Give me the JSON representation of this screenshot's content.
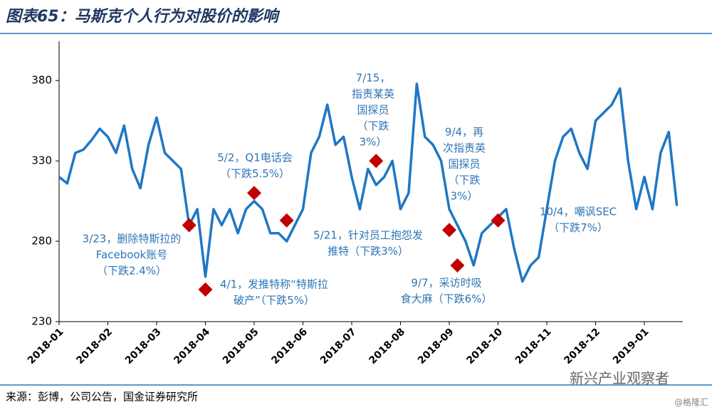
{
  "chart_data": {
    "type": "line",
    "title": "图表65：马斯克个人行为对股价的影响",
    "source": "来源：彭博，公司公告，国金证券研究所",
    "watermark": "新兴产业观察者",
    "credit": "@格隆汇",
    "categories": [
      "2018-01",
      null,
      null,
      null,
      null,
      null,
      "2018-02",
      null,
      null,
      null,
      null,
      null,
      "2018-03",
      null,
      null,
      null,
      null,
      null,
      "2018-04",
      null,
      null,
      null,
      null,
      null,
      "2018-05",
      null,
      null,
      null,
      null,
      null,
      "2018-06",
      null,
      null,
      null,
      null,
      null,
      "2018-07",
      null,
      null,
      null,
      null,
      null,
      "2018-08",
      null,
      null,
      null,
      null,
      null,
      "2018-09",
      null,
      null,
      null,
      null,
      null,
      "2018-10",
      null,
      null,
      null,
      null,
      null,
      "2018-11",
      null,
      null,
      null,
      null,
      null,
      "2018-12",
      null,
      null,
      null,
      null,
      null,
      "2019-01",
      null,
      null,
      null,
      null
    ],
    "series": [
      {
        "color": "#1f77c4",
        "values": [
          320,
          316,
          335,
          337,
          343,
          350,
          345,
          335,
          352,
          325,
          313,
          340,
          357,
          335,
          330,
          325,
          290,
          300,
          258,
          300,
          290,
          300,
          285,
          300,
          305,
          300,
          285,
          285,
          280,
          290,
          300,
          335,
          345,
          365,
          340,
          345,
          320,
          300,
          325,
          315,
          320,
          330,
          300,
          310,
          378,
          345,
          340,
          330,
          300,
          290,
          280,
          265,
          285,
          290,
          295,
          300,
          275,
          255,
          265,
          270,
          300,
          330,
          345,
          350,
          335,
          325,
          355,
          360,
          365,
          375,
          330,
          300,
          320,
          300,
          335,
          348,
          302
        ]
      }
    ],
    "markers": {
      "color": "#c00000",
      "values": [
        null,
        null,
        null,
        null,
        null,
        null,
        null,
        null,
        null,
        null,
        null,
        null,
        null,
        null,
        null,
        null,
        290,
        null,
        250,
        null,
        null,
        null,
        null,
        null,
        310,
        null,
        null,
        null,
        293,
        null,
        null,
        null,
        null,
        null,
        null,
        null,
        null,
        null,
        null,
        330,
        null,
        null,
        null,
        null,
        null,
        null,
        null,
        null,
        287,
        265,
        null,
        null,
        null,
        null,
        293,
        null,
        null,
        null,
        null,
        null,
        null,
        null,
        null,
        null,
        null,
        null,
        null,
        null,
        null,
        null,
        null,
        null,
        null,
        null,
        null,
        null,
        null
      ]
    },
    "annotations": [
      [
        "3/23，删除特斯拉的",
        "Facebook账号",
        "（下跌2.4%）"
      ],
      [
        "4/1，发推特称“特斯拉",
        "破产”（下跌5%）"
      ],
      [
        "5/2，Q1电话会",
        "（下跌5.5%）"
      ],
      [
        "5/21，针对员工抱怨发",
        "推特（下跌3%）"
      ],
      [
        "7/15，",
        "指责某英",
        "国探员",
        "（下跌",
        "3%）"
      ],
      [
        "9/4，再",
        "次指责英",
        "国探员",
        "（下跌",
        "3%）"
      ],
      [
        "9/7，采访时吸",
        "食大麻（下跌6%）"
      ],
      [
        "10/4，嘲讽SEC",
        "（下跌7%）"
      ]
    ],
    "ylim": [
      230,
      400
    ],
    "yticks": [
      230,
      280,
      330,
      380
    ],
    "grid": false
  }
}
